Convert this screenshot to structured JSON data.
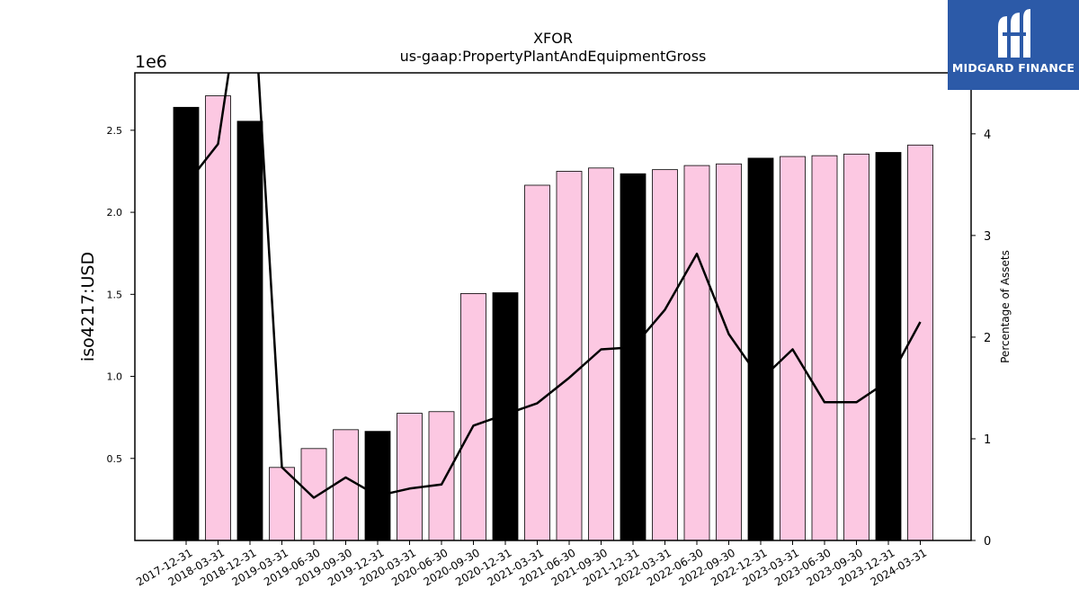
{
  "chart_data": {
    "type": "bar",
    "title": "XFOR",
    "subtitle": "us-gaap:PropertyPlantAndEquipmentGross",
    "ylabel": "iso4217:USD",
    "y2label": "Percentage of Assets",
    "y_multiplier": "1e6",
    "ylim": [
      0,
      2850000
    ],
    "y2lim": [
      0,
      4.6
    ],
    "yticks": [
      0.5,
      1.0,
      1.5,
      2.0,
      2.5
    ],
    "y2ticks": [
      0,
      1,
      2,
      3,
      4
    ],
    "grid": false,
    "categories": [
      "2017-12-31",
      "2018-03-31",
      "2018-12-31",
      "2019-03-31",
      "2019-06-30",
      "2019-09-30",
      "2019-12-31",
      "2020-03-31",
      "2020-06-30",
      "2020-09-30",
      "2020-12-31",
      "2021-03-31",
      "2021-06-30",
      "2021-09-30",
      "2021-12-31",
      "2022-03-31",
      "2022-06-30",
      "2022-09-30",
      "2022-12-31",
      "2023-03-31",
      "2023-06-30",
      "2023-09-30",
      "2023-12-31",
      "2024-03-31"
    ],
    "series": [
      {
        "kind": "bar",
        "values": [
          2640000,
          2710000,
          2555000,
          445000,
          560000,
          675000,
          665000,
          775000,
          785000,
          1505000,
          1510000,
          2165000,
          2250000,
          2270000,
          2235000,
          2260000,
          2285000,
          2295000,
          2330000,
          2340000,
          2345000,
          2355000,
          2365000,
          2410000
        ],
        "colors": [
          "#000000",
          "#fcc8e2",
          "#000000",
          "#fcc8e2",
          "#fcc8e2",
          "#fcc8e2",
          "#000000",
          "#fcc8e2",
          "#fcc8e2",
          "#fcc8e2",
          "#000000",
          "#fcc8e2",
          "#fcc8e2",
          "#fcc8e2",
          "#000000",
          "#fcc8e2",
          "#fcc8e2",
          "#fcc8e2",
          "#000000",
          "#fcc8e2",
          "#fcc8e2",
          "#fcc8e2",
          "#000000",
          "#fcc8e2"
        ]
      },
      {
        "kind": "line",
        "axis": "right",
        "values": [
          3.5,
          3.9,
          6.0,
          0.72,
          0.42,
          0.62,
          0.44,
          0.51,
          0.55,
          1.13,
          1.24,
          1.35,
          1.6,
          1.88,
          1.9,
          2.27,
          2.82,
          2.03,
          1.58,
          1.88,
          1.36,
          1.36,
          1.57,
          2.15
        ],
        "color": "#000000"
      }
    ]
  },
  "logo": {
    "text": "MIDGARD FINANCE"
  },
  "colors": {
    "highlight_bar": "#000000",
    "normal_bar": "#fcc8e2",
    "logo_bg": "#2c5aa8"
  }
}
